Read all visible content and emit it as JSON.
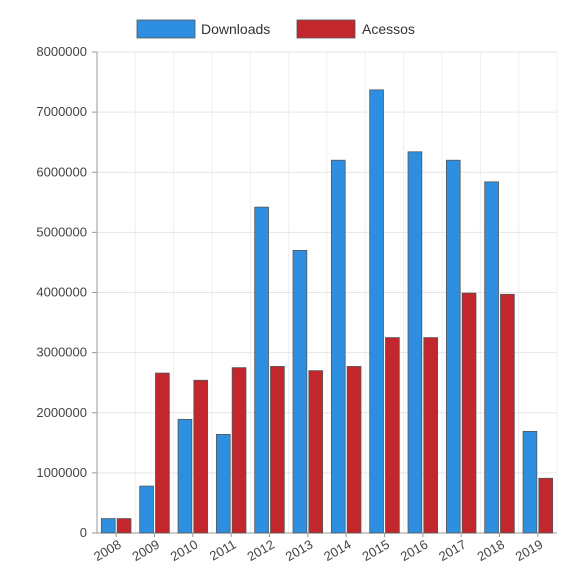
{
  "chart_data": {
    "type": "bar",
    "title": "",
    "xlabel": "",
    "ylabel": "",
    "categories": [
      "2008",
      "2009",
      "2010",
      "2011",
      "2012",
      "2013",
      "2014",
      "2015",
      "2016",
      "2017",
      "2018",
      "2019"
    ],
    "series": [
      {
        "name": "Downloads",
        "color": "#2e8fe0",
        "values": [
          240000,
          780000,
          1890000,
          1640000,
          5420000,
          4700000,
          6200000,
          7370000,
          6340000,
          6200000,
          5840000,
          1690000
        ]
      },
      {
        "name": "Acessos",
        "color": "#c1272d",
        "values": [
          240000,
          2660000,
          2540000,
          2750000,
          2770000,
          2700000,
          2770000,
          3250000,
          3250000,
          3990000,
          3970000,
          910000
        ]
      }
    ],
    "ylim": [
      0,
      8000000
    ],
    "yticks": [
      0,
      1000000,
      2000000,
      3000000,
      4000000,
      5000000,
      6000000,
      7000000,
      8000000
    ],
    "grid": true,
    "legend_position": "top"
  }
}
